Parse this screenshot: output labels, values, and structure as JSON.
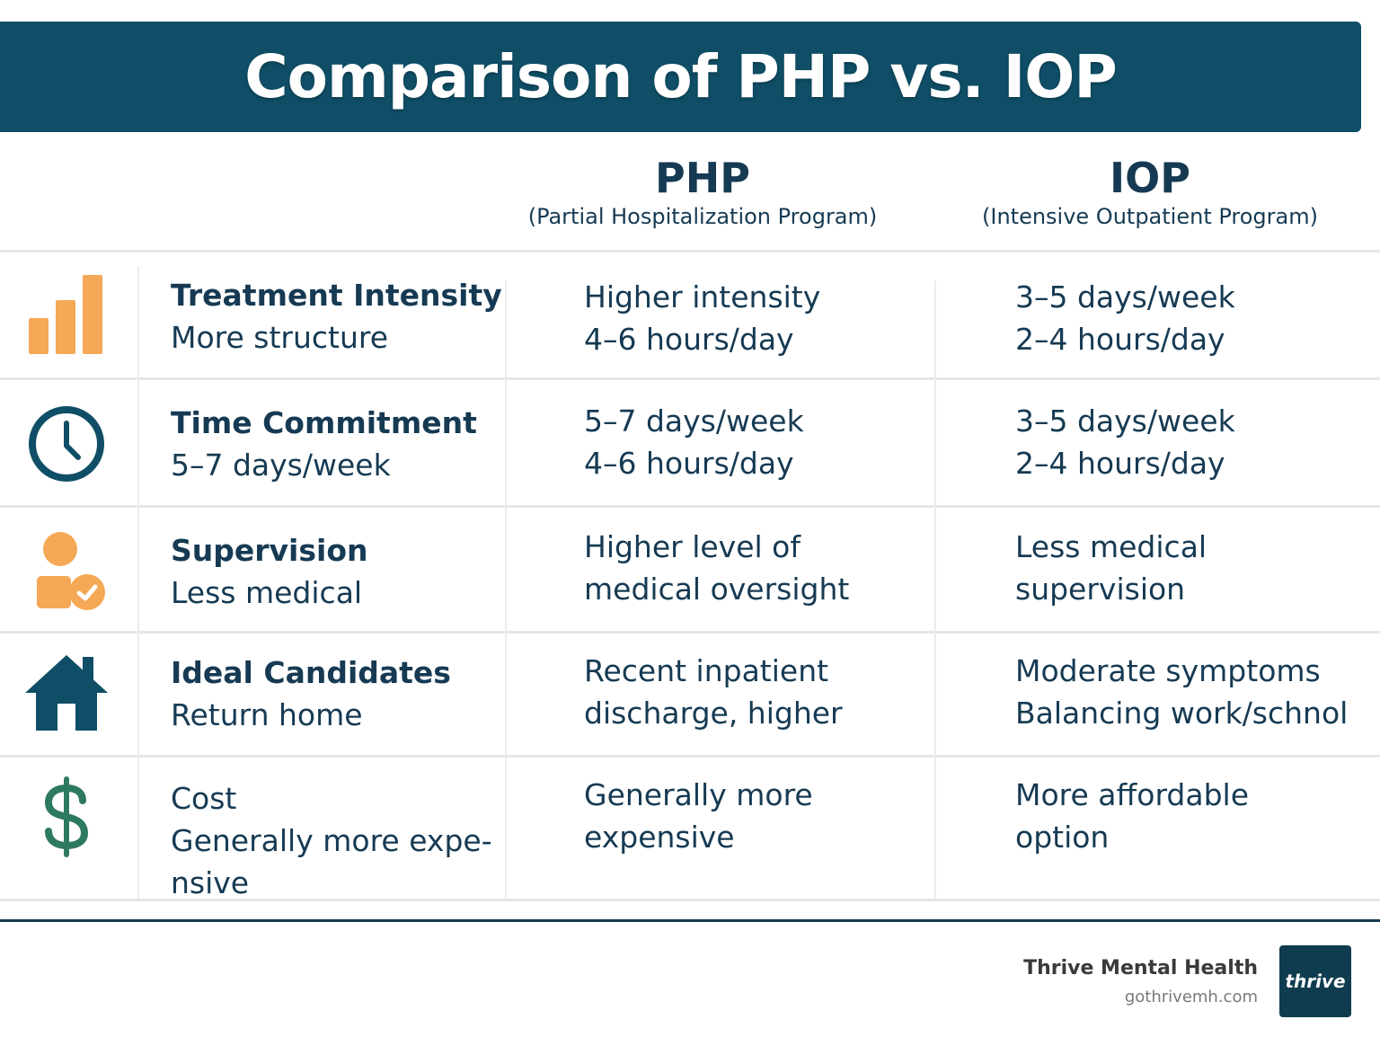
{
  "title": "Comparison of PHP vs. IOP",
  "columns": [
    {
      "abbr": "PHP",
      "full": "(Partial Hospitalization Program)"
    },
    {
      "abbr": "IOP",
      "full": "(Intensive Outpatient Program)"
    }
  ],
  "rows": [
    {
      "icon": "bar-chart-icon",
      "category": [
        "Treatment Intensity",
        "More structure"
      ],
      "php": [
        "Higher intensity",
        "4–6 hours/day"
      ],
      "iop": [
        "3–5 days/week",
        "2–4 hours/day"
      ]
    },
    {
      "icon": "clock-icon",
      "category": [
        "Time Commitment",
        "5–7 days/week"
      ],
      "php": [
        "5–7 days/week",
        "4–6 hours/day"
      ],
      "iop": [
        "3–5 days/week",
        "2–4 hours/day"
      ]
    },
    {
      "icon": "person-check-icon",
      "category": [
        "Supervision",
        "Less medical"
      ],
      "php": [
        "Higher level of",
        "medical oversight"
      ],
      "iop": [
        "Less medical",
        "supervision"
      ]
    },
    {
      "icon": "house-icon",
      "category": [
        "Ideal Candidates",
        "Return home"
      ],
      "php": [
        "Recent inpatient",
        "discharge, higher"
      ],
      "iop": [
        "Moderate symptoms",
        "Balancing work/schnol"
      ]
    },
    {
      "icon": "dollar-icon",
      "category": [
        "Cost",
        "Generally more expe-",
        "nsive"
      ],
      "php": [
        "Generally more",
        "expensive"
      ],
      "iop": [
        "More affordable",
        "option"
      ]
    }
  ],
  "footer": {
    "brand_name": "Thrive Mental Health",
    "url": "gothrivemh.com",
    "logo_text": "thrive"
  },
  "colors": {
    "banner": "#0f4e66",
    "text": "#163a53",
    "accent_orange": "#f5a855",
    "icon_dark": "#0f4e66",
    "dollar_green": "#2e7a5e"
  }
}
